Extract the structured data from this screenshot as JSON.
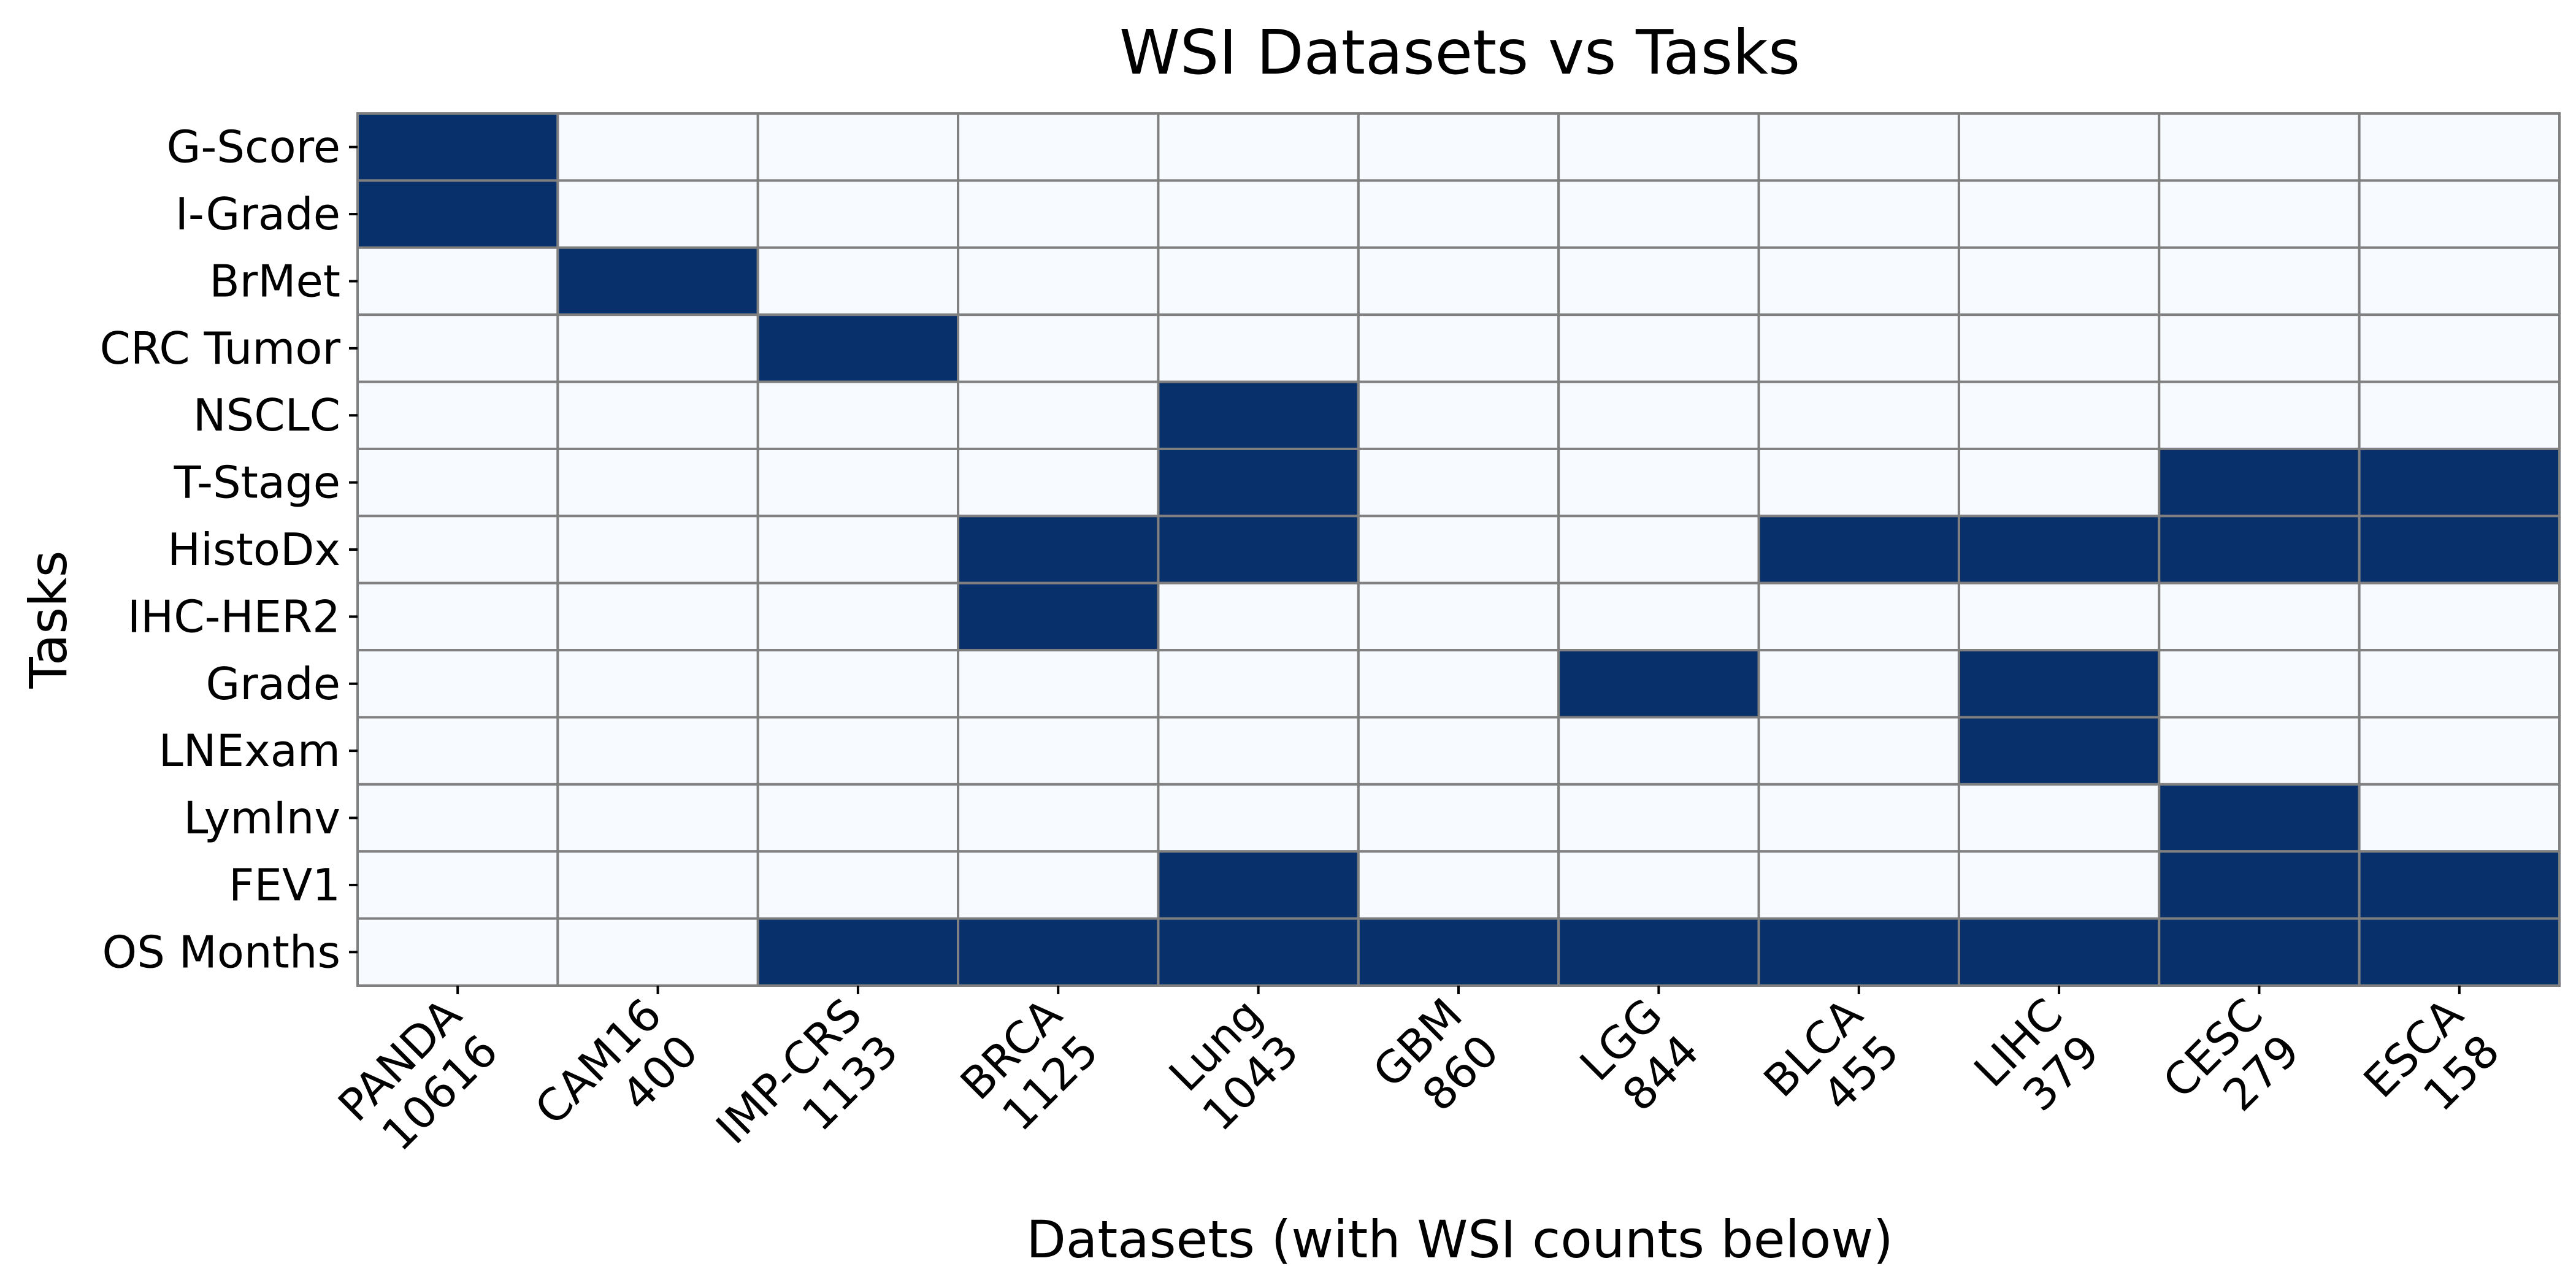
{
  "chart_data": {
    "type": "heatmap",
    "title": "WSI Datasets vs Tasks",
    "xlabel": "Datasets (with WSI counts below)",
    "ylabel": "Tasks",
    "x_categories": [
      {
        "name": "PANDA",
        "count": "10616"
      },
      {
        "name": "CAM16",
        "count": "400"
      },
      {
        "name": "IMP-CRS",
        "count": "1133"
      },
      {
        "name": "BRCA",
        "count": "1125"
      },
      {
        "name": "Lung",
        "count": "1043"
      },
      {
        "name": "GBM",
        "count": "860"
      },
      {
        "name": "LGG",
        "count": "844"
      },
      {
        "name": "BLCA",
        "count": "455"
      },
      {
        "name": "LIHC",
        "count": "379"
      },
      {
        "name": "CESC",
        "count": "279"
      },
      {
        "name": "ESCA",
        "count": "158"
      }
    ],
    "y_categories": [
      "G-Score",
      "I-Grade",
      "BrMet",
      "CRC Tumor",
      "NSCLC",
      "T-Stage",
      "HistoDx",
      "IHC-HER2",
      "Grade",
      "LNExam",
      "LymInv",
      "FEV1",
      "OS Months"
    ],
    "matrix": [
      [
        1,
        0,
        0,
        0,
        0,
        0,
        0,
        0,
        0,
        0,
        0
      ],
      [
        1,
        0,
        0,
        0,
        0,
        0,
        0,
        0,
        0,
        0,
        0
      ],
      [
        0,
        1,
        0,
        0,
        0,
        0,
        0,
        0,
        0,
        0,
        0
      ],
      [
        0,
        0,
        1,
        0,
        0,
        0,
        0,
        0,
        0,
        0,
        0
      ],
      [
        0,
        0,
        0,
        0,
        1,
        0,
        0,
        0,
        0,
        0,
        0
      ],
      [
        0,
        0,
        0,
        0,
        1,
        0,
        0,
        0,
        0,
        1,
        1
      ],
      [
        0,
        0,
        0,
        1,
        1,
        0,
        0,
        1,
        1,
        1,
        1
      ],
      [
        0,
        0,
        0,
        1,
        0,
        0,
        0,
        0,
        0,
        0,
        0
      ],
      [
        0,
        0,
        0,
        0,
        0,
        0,
        1,
        0,
        1,
        0,
        0
      ],
      [
        0,
        0,
        0,
        0,
        0,
        0,
        0,
        0,
        1,
        0,
        0
      ],
      [
        0,
        0,
        0,
        0,
        0,
        0,
        0,
        0,
        0,
        1,
        0
      ],
      [
        0,
        0,
        0,
        0,
        1,
        0,
        0,
        0,
        0,
        1,
        1
      ],
      [
        0,
        0,
        1,
        1,
        1,
        1,
        1,
        1,
        1,
        1,
        1
      ]
    ],
    "colors": {
      "on": "#08306b",
      "off": "#f7fbff",
      "grid": "#808080"
    },
    "legend": "none"
  }
}
